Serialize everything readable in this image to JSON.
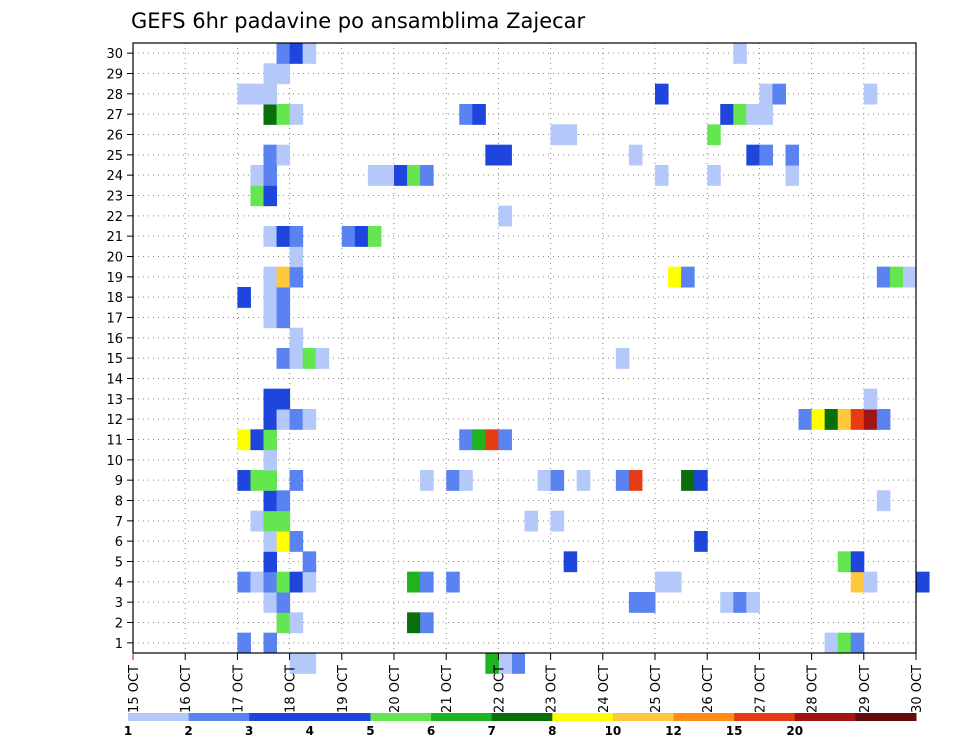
{
  "chart_data": {
    "type": "heatmap",
    "title": "GEFS 6hr padavine po ansamblima Zajecar",
    "ylabel": "",
    "xlabel": "",
    "y_ticks": [
      "1",
      "2",
      "3",
      "4",
      "5",
      "6",
      "7",
      "8",
      "9",
      "10",
      "11",
      "12",
      "13",
      "14",
      "15",
      "16",
      "17",
      "18",
      "19",
      "20",
      "21",
      "22",
      "23",
      "24",
      "25",
      "26",
      "27",
      "28",
      "29",
      "30"
    ],
    "x_ticks": [
      "15 OCT",
      "16 OCT",
      "17 OCT",
      "18 OCT",
      "19 OCT",
      "20 OCT",
      "21 OCT",
      "22 OCT",
      "23 OCT",
      "24 OCT",
      "25 OCT",
      "26 OCT",
      "27 OCT",
      "28 OCT",
      "29 OCT",
      "30 OCT"
    ],
    "time_step_hours": 6,
    "ylim": [
      0.5,
      30.5
    ],
    "xlim_days": [
      0,
      15
    ],
    "grid": "dotted",
    "legend": {
      "labels": [
        "1",
        "2",
        "3",
        "4",
        "5",
        "6",
        "7",
        "8",
        "10",
        "12",
        "15",
        "20"
      ],
      "colors": [
        "#b4c8fa",
        "#5a82f0",
        "#1e46dc",
        "#1e46dc",
        "#64e650",
        "#1eb41e",
        "#0a6e0a",
        "#ffff00",
        "#ffc83c",
        "#ff8c14",
        "#e63c14",
        "#a01414",
        "#640a0a"
      ]
    },
    "colors": {
      "c1": "#b4c8fa",
      "c2": "#5a82f0",
      "c3": "#1e46dc",
      "c5": "#64e650",
      "c6": "#1eb41e",
      "c7": "#0a6e0a",
      "c8": "#ffff00",
      "c10": "#ffc83c",
      "c12": "#ff8c14",
      "c15": "#e63c14",
      "c20": "#a01414",
      "c25": "#640a0a"
    },
    "cells_note": "each cell: [time index in 6-hour steps from 15 OCT 00Z, ensemble member (y), precipitation class]",
    "cells": [
      [
        8,
        1,
        2
      ],
      [
        10,
        1,
        2
      ],
      [
        12,
        0,
        1
      ],
      [
        13,
        0,
        1
      ],
      [
        29,
        0,
        2
      ],
      [
        28,
        0,
        1
      ],
      [
        27,
        0,
        6
      ],
      [
        53,
        1,
        1
      ],
      [
        54,
        1,
        5
      ],
      [
        55,
        1,
        2
      ],
      [
        11,
        2,
        5
      ],
      [
        12,
        2,
        1
      ],
      [
        21,
        2,
        7
      ],
      [
        22,
        2,
        2
      ],
      [
        10,
        3,
        1
      ],
      [
        11,
        3,
        2
      ],
      [
        38,
        3,
        2
      ],
      [
        39,
        3,
        2
      ],
      [
        45,
        3,
        1
      ],
      [
        46,
        3,
        2
      ],
      [
        47,
        3,
        1
      ],
      [
        8,
        4,
        2
      ],
      [
        9,
        4,
        1
      ],
      [
        10,
        4,
        2
      ],
      [
        11,
        4,
        5
      ],
      [
        12,
        4,
        3
      ],
      [
        13,
        4,
        1
      ],
      [
        21,
        4,
        6
      ],
      [
        22,
        4,
        2
      ],
      [
        24,
        4,
        2
      ],
      [
        40,
        4,
        1
      ],
      [
        41,
        4,
        1
      ],
      [
        55,
        4,
        10
      ],
      [
        56,
        4,
        1
      ],
      [
        60,
        4,
        3
      ],
      [
        10,
        5,
        3
      ],
      [
        13,
        5,
        2
      ],
      [
        33,
        5,
        3
      ],
      [
        54,
        5,
        5
      ],
      [
        55,
        5,
        3
      ],
      [
        10,
        6,
        1
      ],
      [
        11,
        6,
        8
      ],
      [
        12,
        6,
        2
      ],
      [
        43,
        6,
        3
      ],
      [
        9,
        7,
        1
      ],
      [
        10,
        7,
        5
      ],
      [
        11,
        7,
        5
      ],
      [
        30,
        7,
        1
      ],
      [
        32,
        7,
        1
      ],
      [
        10,
        8,
        3
      ],
      [
        11,
        8,
        2
      ],
      [
        57,
        8,
        1
      ],
      [
        8,
        9,
        3
      ],
      [
        9,
        9,
        5
      ],
      [
        10,
        9,
        5
      ],
      [
        12,
        9,
        2
      ],
      [
        22,
        9,
        1
      ],
      [
        24,
        9,
        2
      ],
      [
        25,
        9,
        1
      ],
      [
        31,
        9,
        1
      ],
      [
        32,
        9,
        2
      ],
      [
        34,
        9,
        1
      ],
      [
        37,
        9,
        2
      ],
      [
        38,
        9,
        15
      ],
      [
        42,
        9,
        7
      ],
      [
        43,
        9,
        3
      ],
      [
        10,
        10,
        1
      ],
      [
        8,
        11,
        8
      ],
      [
        9,
        11,
        3
      ],
      [
        10,
        11,
        5
      ],
      [
        25,
        11,
        2
      ],
      [
        26,
        11,
        6
      ],
      [
        27,
        11,
        15
      ],
      [
        28,
        11,
        2
      ],
      [
        10,
        12,
        3
      ],
      [
        11,
        12,
        1
      ],
      [
        12,
        12,
        2
      ],
      [
        13,
        12,
        1
      ],
      [
        51,
        12,
        2
      ],
      [
        52,
        12,
        8
      ],
      [
        53,
        12,
        7
      ],
      [
        54,
        12,
        10
      ],
      [
        55,
        12,
        15
      ],
      [
        56,
        12,
        20
      ],
      [
        57,
        12,
        2
      ],
      [
        10,
        13,
        3
      ],
      [
        11,
        13,
        3
      ],
      [
        56,
        13,
        1
      ],
      [
        11,
        15,
        2
      ],
      [
        12,
        15,
        1
      ],
      [
        13,
        15,
        5
      ],
      [
        14,
        15,
        1
      ],
      [
        37,
        15,
        1
      ],
      [
        12,
        16,
        1
      ],
      [
        10,
        17,
        1
      ],
      [
        11,
        17,
        2
      ],
      [
        8,
        18,
        3
      ],
      [
        10,
        18,
        1
      ],
      [
        11,
        18,
        2
      ],
      [
        10,
        19,
        1
      ],
      [
        11,
        19,
        10
      ],
      [
        12,
        19,
        2
      ],
      [
        41,
        19,
        8
      ],
      [
        42,
        19,
        2
      ],
      [
        57,
        19,
        2
      ],
      [
        58,
        19,
        5
      ],
      [
        59,
        19,
        1
      ],
      [
        12,
        20,
        1
      ],
      [
        10,
        21,
        1
      ],
      [
        11,
        21,
        3
      ],
      [
        12,
        21,
        2
      ],
      [
        16,
        21,
        2
      ],
      [
        17,
        21,
        3
      ],
      [
        18,
        21,
        5
      ],
      [
        28,
        22,
        1
      ],
      [
        9,
        23,
        5
      ],
      [
        10,
        23,
        3
      ],
      [
        9,
        24,
        1
      ],
      [
        10,
        24,
        2
      ],
      [
        18,
        24,
        1
      ],
      [
        19,
        24,
        1
      ],
      [
        20,
        24,
        3
      ],
      [
        21,
        24,
        5
      ],
      [
        22,
        24,
        2
      ],
      [
        40,
        24,
        1
      ],
      [
        44,
        24,
        1
      ],
      [
        50,
        24,
        1
      ],
      [
        10,
        25,
        2
      ],
      [
        11,
        25,
        1
      ],
      [
        27,
        25,
        3
      ],
      [
        28,
        25,
        3
      ],
      [
        38,
        25,
        1
      ],
      [
        47,
        25,
        3
      ],
      [
        48,
        25,
        2
      ],
      [
        50,
        25,
        2
      ],
      [
        32,
        26,
        1
      ],
      [
        33,
        26,
        1
      ],
      [
        44,
        26,
        5
      ],
      [
        10,
        27,
        7
      ],
      [
        11,
        27,
        5
      ],
      [
        12,
        27,
        1
      ],
      [
        25,
        27,
        2
      ],
      [
        26,
        27,
        3
      ],
      [
        45,
        27,
        3
      ],
      [
        46,
        27,
        5
      ],
      [
        47,
        27,
        1
      ],
      [
        48,
        27,
        1
      ],
      [
        8,
        28,
        1
      ],
      [
        9,
        28,
        1
      ],
      [
        10,
        28,
        1
      ],
      [
        40,
        28,
        3
      ],
      [
        48,
        28,
        1
      ],
      [
        49,
        28,
        2
      ],
      [
        56,
        28,
        1
      ],
      [
        10,
        29,
        1
      ],
      [
        11,
        29,
        1
      ],
      [
        11,
        30,
        2
      ],
      [
        12,
        30,
        3
      ],
      [
        13,
        30,
        1
      ],
      [
        46,
        30,
        1
      ]
    ]
  }
}
